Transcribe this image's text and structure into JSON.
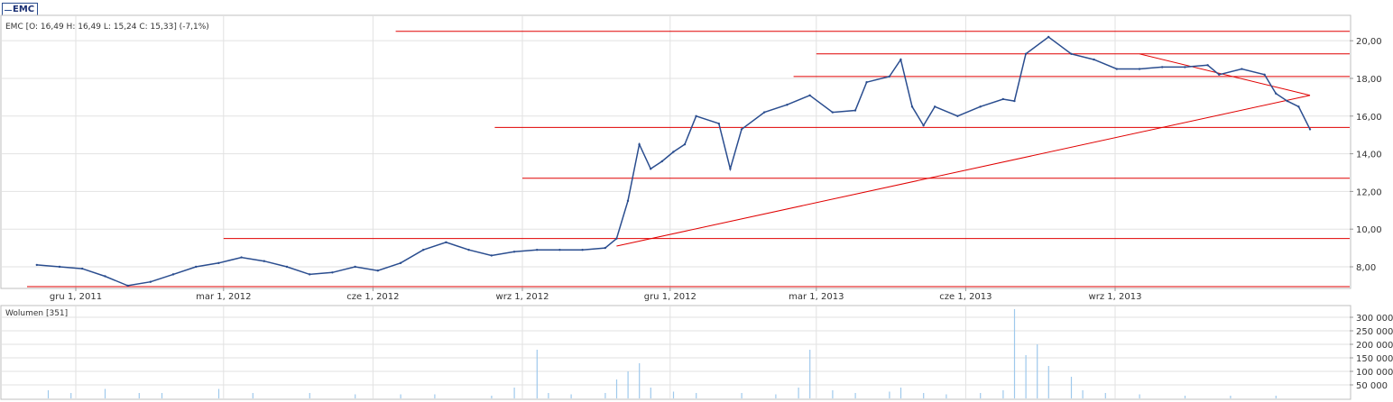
{
  "legend": {
    "label": "EMC"
  },
  "price_info": {
    "text": "EMC [O: 16,49  H: 16,49  L: 15,24  C: 15,33] (-7,1%)"
  },
  "volume_info": {
    "text": "Wolumen [351]"
  },
  "colors": {
    "series": "#2a4d8f",
    "lines": "#e00000",
    "volume": "#9ec9ec",
    "grid": "#e2e2e2"
  },
  "chart_data": [
    {
      "type": "line",
      "title": "EMC [O: 16,49  H: 16,49  L: 15,24  C: 15,33] (-7,1%)",
      "series": [
        {
          "name": "EMC"
        }
      ],
      "x_range": [
        "2011-11-01",
        "2013-12-30"
      ],
      "ylim": [
        6.9,
        21.3
      ],
      "y_ticks": [
        "8,00",
        "10,00",
        "12,00",
        "14,00",
        "16,00",
        "18,00",
        "20,00"
      ],
      "x_ticks": [
        "gru 1, 2011",
        "mar 1, 2012",
        "cze 1, 2012",
        "wrz 1, 2012",
        "gru 1, 2012",
        "mar 1, 2013",
        "cze 1, 2013",
        "wrz 1, 2013"
      ],
      "x_tick_dates": [
        "2011-12-01",
        "2012-03-01",
        "2012-06-01",
        "2012-09-01",
        "2012-12-01",
        "2013-03-01",
        "2013-06-01",
        "2013-09-01"
      ],
      "grid": true,
      "points": [
        [
          "2011-11-07",
          8.1
        ],
        [
          "2011-11-21",
          8.0
        ],
        [
          "2011-12-05",
          7.9
        ],
        [
          "2011-12-19",
          7.5
        ],
        [
          "2012-01-02",
          7.0
        ],
        [
          "2012-01-16",
          7.2
        ],
        [
          "2012-01-30",
          7.6
        ],
        [
          "2012-02-13",
          8.0
        ],
        [
          "2012-02-27",
          8.2
        ],
        [
          "2012-03-12",
          8.5
        ],
        [
          "2012-03-26",
          8.3
        ],
        [
          "2012-04-09",
          8.0
        ],
        [
          "2012-04-23",
          7.6
        ],
        [
          "2012-05-07",
          7.7
        ],
        [
          "2012-05-21",
          8.0
        ],
        [
          "2012-06-04",
          7.8
        ],
        [
          "2012-06-18",
          8.2
        ],
        [
          "2012-07-02",
          8.9
        ],
        [
          "2012-07-16",
          9.3
        ],
        [
          "2012-07-30",
          8.9
        ],
        [
          "2012-08-13",
          8.6
        ],
        [
          "2012-08-27",
          8.8
        ],
        [
          "2012-09-10",
          8.9
        ],
        [
          "2012-09-24",
          8.9
        ],
        [
          "2012-10-08",
          8.9
        ],
        [
          "2012-10-22",
          9.0
        ],
        [
          "2012-10-29",
          9.5
        ],
        [
          "2012-11-05",
          11.5
        ],
        [
          "2012-11-12",
          14.5
        ],
        [
          "2012-11-19",
          13.2
        ],
        [
          "2012-11-26",
          13.6
        ],
        [
          "2012-12-03",
          14.1
        ],
        [
          "2012-12-10",
          14.5
        ],
        [
          "2012-12-17",
          16.0
        ],
        [
          "2012-12-31",
          15.6
        ],
        [
          "2013-01-07",
          13.2
        ],
        [
          "2013-01-14",
          15.3
        ],
        [
          "2013-01-28",
          16.2
        ],
        [
          "2013-02-11",
          16.6
        ],
        [
          "2013-02-25",
          17.1
        ],
        [
          "2013-03-11",
          16.2
        ],
        [
          "2013-03-25",
          16.3
        ],
        [
          "2013-04-01",
          17.8
        ],
        [
          "2013-04-15",
          18.1
        ],
        [
          "2013-04-22",
          19.0
        ],
        [
          "2013-04-29",
          16.5
        ],
        [
          "2013-05-06",
          15.5
        ],
        [
          "2013-05-13",
          16.5
        ],
        [
          "2013-05-27",
          16.0
        ],
        [
          "2013-06-10",
          16.5
        ],
        [
          "2013-06-24",
          16.9
        ],
        [
          "2013-07-01",
          16.8
        ],
        [
          "2013-07-08",
          19.3
        ],
        [
          "2013-07-22",
          20.2
        ],
        [
          "2013-08-05",
          19.3
        ],
        [
          "2013-08-19",
          19.0
        ],
        [
          "2013-09-02",
          18.5
        ],
        [
          "2013-09-16",
          18.5
        ],
        [
          "2013-09-30",
          18.6
        ],
        [
          "2013-10-14",
          18.6
        ],
        [
          "2013-10-28",
          18.7
        ],
        [
          "2013-11-04",
          18.2
        ],
        [
          "2013-11-18",
          18.5
        ],
        [
          "2013-12-02",
          18.2
        ],
        [
          "2013-12-09",
          17.2
        ],
        [
          "2013-12-16",
          16.8
        ],
        [
          "2013-12-23",
          16.5
        ],
        [
          "2013-12-30",
          15.3
        ]
      ],
      "horizontal_lines": [
        {
          "y": 20.5,
          "from": "2012-06-15"
        },
        {
          "y": 19.3,
          "from": "2013-03-01"
        },
        {
          "y": 18.1,
          "from": "2013-02-15"
        },
        {
          "y": 15.4,
          "from": "2012-08-15"
        },
        {
          "y": 12.7,
          "from": "2012-09-01"
        },
        {
          "y": 9.5,
          "from": "2012-03-01"
        },
        {
          "y": 6.95,
          "from": "2011-11-01"
        }
      ],
      "trend_lines": [
        {
          "from": [
            "2012-10-29",
            9.1
          ],
          "to": [
            "2013-12-30",
            17.1
          ]
        },
        {
          "from": [
            "2013-09-16",
            19.3
          ],
          "to": [
            "2013-12-30",
            17.1
          ]
        }
      ]
    },
    {
      "type": "bar",
      "title": "Wolumen [351]",
      "ylim": [
        0,
        340000
      ],
      "y_ticks": [
        "50 000",
        "100 000",
        "150 000",
        "200 000",
        "250 000",
        "300 000"
      ],
      "bars": [
        [
          "2011-11-14",
          30000
        ],
        [
          "2011-11-28",
          20000
        ],
        [
          "2011-12-19",
          35000
        ],
        [
          "2012-01-09",
          20000
        ],
        [
          "2012-01-23",
          20000
        ],
        [
          "2012-02-27",
          35000
        ],
        [
          "2012-03-19",
          20000
        ],
        [
          "2012-04-23",
          20000
        ],
        [
          "2012-05-21",
          15000
        ],
        [
          "2012-06-18",
          15000
        ],
        [
          "2012-07-09",
          15000
        ],
        [
          "2012-08-13",
          10000
        ],
        [
          "2012-08-27",
          40000
        ],
        [
          "2012-09-10",
          180000
        ],
        [
          "2012-09-17",
          20000
        ],
        [
          "2012-10-01",
          15000
        ],
        [
          "2012-10-22",
          20000
        ],
        [
          "2012-10-29",
          70000
        ],
        [
          "2012-11-05",
          100000
        ],
        [
          "2012-11-12",
          130000
        ],
        [
          "2012-11-19",
          40000
        ],
        [
          "2012-12-03",
          25000
        ],
        [
          "2012-12-17",
          20000
        ],
        [
          "2013-01-14",
          20000
        ],
        [
          "2013-02-04",
          15000
        ],
        [
          "2013-02-18",
          40000
        ],
        [
          "2013-02-25",
          180000
        ],
        [
          "2013-03-11",
          30000
        ],
        [
          "2013-03-25",
          20000
        ],
        [
          "2013-04-15",
          25000
        ],
        [
          "2013-04-22",
          40000
        ],
        [
          "2013-05-06",
          20000
        ],
        [
          "2013-05-20",
          15000
        ],
        [
          "2013-06-10",
          20000
        ],
        [
          "2013-06-24",
          30000
        ],
        [
          "2013-07-01",
          330000
        ],
        [
          "2013-07-08",
          160000
        ],
        [
          "2013-07-15",
          200000
        ],
        [
          "2013-07-22",
          120000
        ],
        [
          "2013-08-05",
          80000
        ],
        [
          "2013-08-12",
          30000
        ],
        [
          "2013-08-26",
          20000
        ],
        [
          "2013-09-16",
          15000
        ],
        [
          "2013-10-14",
          10000
        ],
        [
          "2013-11-11",
          10000
        ],
        [
          "2013-12-09",
          10000
        ]
      ]
    }
  ]
}
